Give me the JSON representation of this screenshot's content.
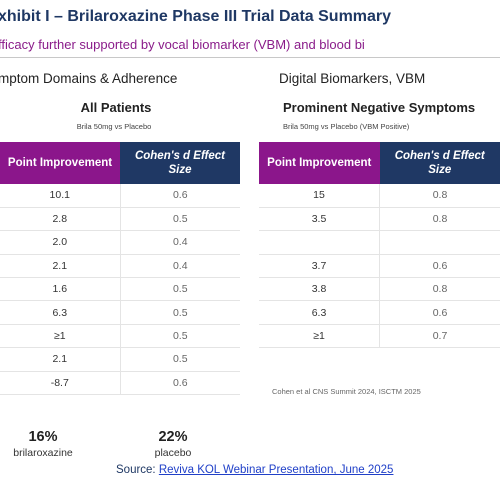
{
  "header": {
    "title": "xhibit I – Brilaroxazine Phase III Trial Data Summary",
    "subtitle": "fficacy further supported by vocal biomarker (VBM) and blood bi"
  },
  "left_section": {
    "heading": "mptom Domains & Adherence",
    "group_title": "All Patients",
    "group_subtitle": "Brila 50mg vs Placebo",
    "columns": [
      "Point Improvement",
      "Cohen's d Effect Size"
    ],
    "rows": [
      [
        "10.1",
        "0.6"
      ],
      [
        "2.8",
        "0.5"
      ],
      [
        "2.0",
        "0.4"
      ],
      [
        "2.1",
        "0.4"
      ],
      [
        "1.6",
        "0.5"
      ],
      [
        "6.3",
        "0.5"
      ],
      [
        "≥1",
        "0.5"
      ],
      [
        "2.1",
        "0.5"
      ],
      [
        "-8.7",
        "0.6"
      ]
    ]
  },
  "right_section": {
    "heading": "Digital Biomarkers, VBM",
    "group_title": "Prominent Negative Symptoms",
    "group_subtitle": "Brila 50mg vs Placebo (VBM Positive)",
    "columns": [
      "Point Improvement",
      "Cohen's d Effect Size"
    ],
    "rows": [
      [
        "15",
        "0.8"
      ],
      [
        "3.5",
        "0.8"
      ],
      [
        "",
        ""
      ],
      [
        "3.7",
        "0.6"
      ],
      [
        "3.8",
        "0.8"
      ],
      [
        "6.3",
        "0.6"
      ],
      [
        "≥1",
        "0.7"
      ]
    ],
    "citation": "Cohen et al CNS Summit 2024, ISCTM 2025"
  },
  "stats": [
    {
      "value": "16%",
      "label": "brilaroxazine"
    },
    {
      "value": "22%",
      "label": "placebo"
    }
  ],
  "footer": {
    "source_label": "Source:",
    "source_link": "Reviva KOL Webinar Presentation, June 2025"
  },
  "colors": {
    "header_purple": "#8b168b",
    "header_navy": "#1f3864",
    "subtitle_purple": "#8a1c8a",
    "link_blue": "#2040c8"
  }
}
